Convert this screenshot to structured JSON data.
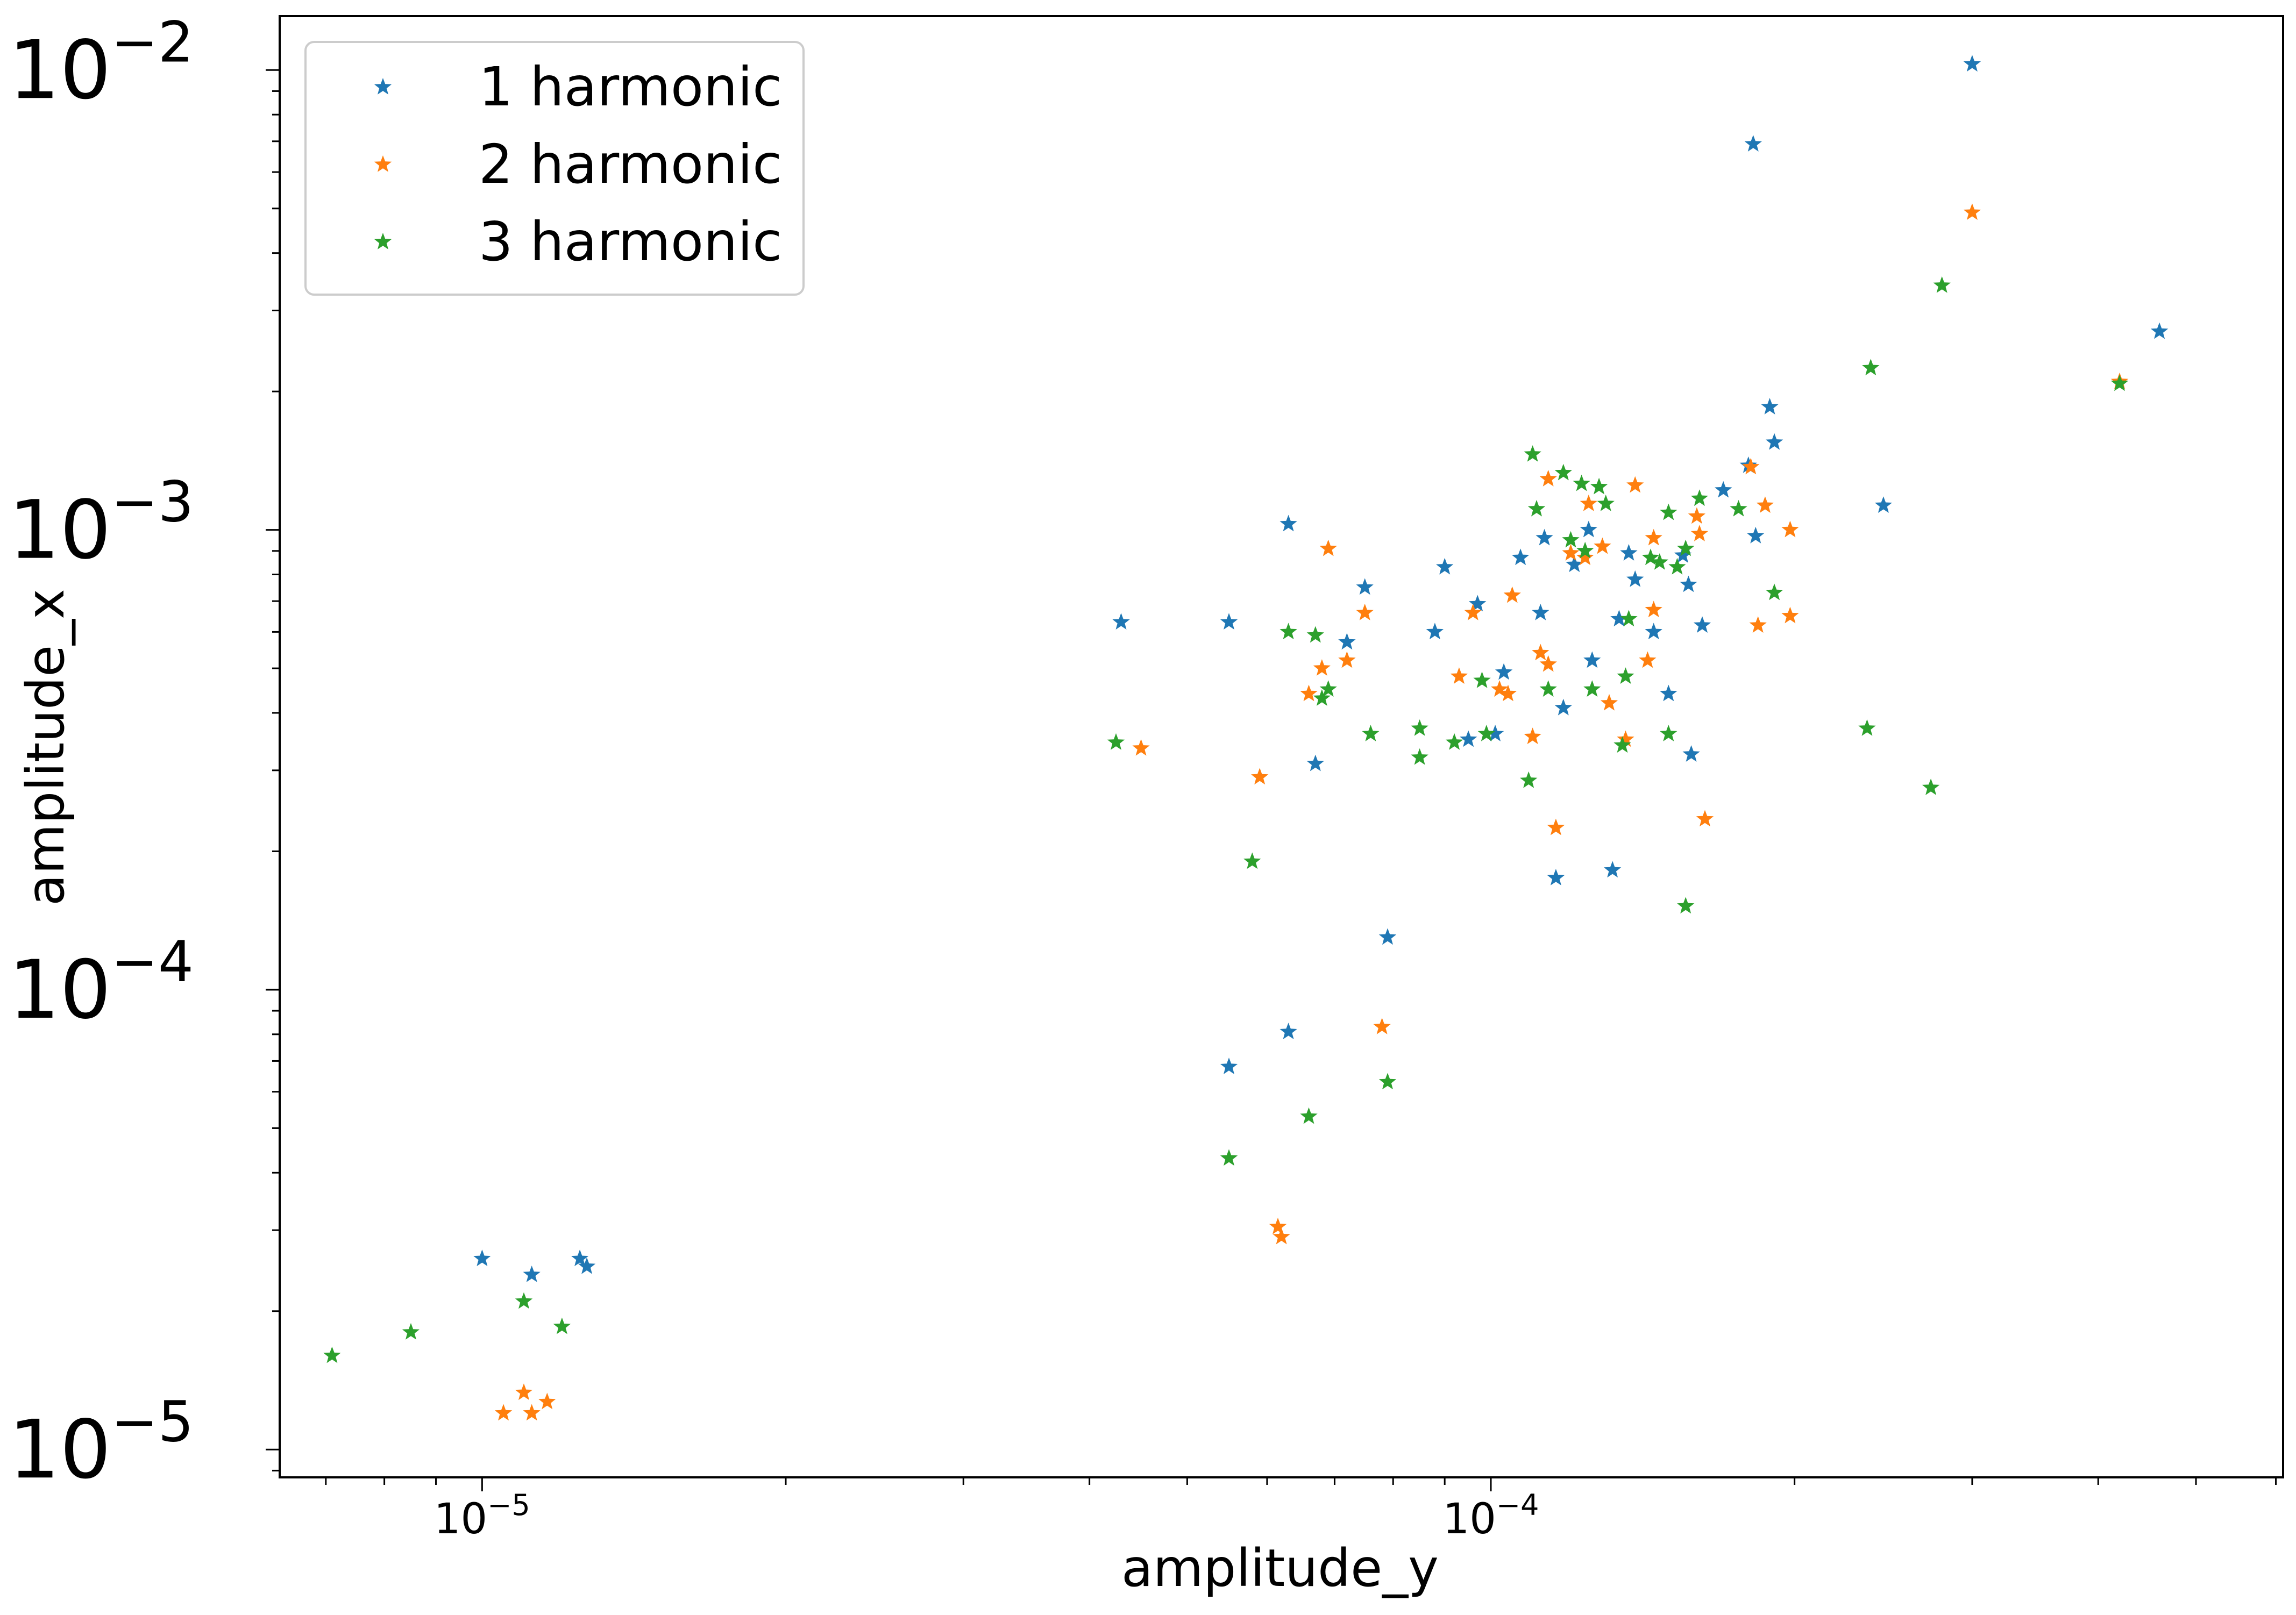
{
  "chart_data": {
    "type": "scatter",
    "xlabel": "amplitude_y",
    "ylabel": "amplitude_x",
    "xscale": "log",
    "yscale": "log",
    "xlim": [
      6.3e-06,
      0.00061
    ],
    "ylim": [
      8.7e-06,
      0.0131
    ],
    "grid": false,
    "legend_position": "top-left",
    "marker": "star",
    "x_ticks": [
      {
        "base": "10",
        "exp": "−5",
        "value": 1e-05
      },
      {
        "base": "10",
        "exp": "−4",
        "value": 0.0001
      }
    ],
    "y_ticks": [
      {
        "base": "10",
        "exp": "−2",
        "value": 0.01
      },
      {
        "base": "10",
        "exp": "−3",
        "value": 0.001
      },
      {
        "base": "10",
        "exp": "−4",
        "value": 0.0001
      },
      {
        "base": "10",
        "exp": "−5",
        "value": 1e-05
      }
    ],
    "series": [
      {
        "name": "1 harmonic",
        "color": "#1f77b4",
        "points": [
          [
            1e-05,
            2.6e-05
          ],
          [
            1.12e-05,
            2.4e-05
          ],
          [
            1.25e-05,
            2.6e-05
          ],
          [
            1.27e-05,
            2.5e-05
          ],
          [
            4.3e-05,
            0.00063
          ],
          [
            5.5e-05,
            0.00063
          ],
          [
            5.5e-05,
            6.8e-05
          ],
          [
            6.3e-05,
            0.00103
          ],
          [
            6.3e-05,
            8.1e-05
          ],
          [
            6.7e-05,
            0.00031
          ],
          [
            7.2e-05,
            0.00057
          ],
          [
            7.5e-05,
            0.00075
          ],
          [
            7.9e-05,
            0.00013
          ],
          [
            8.8e-05,
            0.0006
          ],
          [
            9e-05,
            0.00083
          ],
          [
            9.5e-05,
            0.00035
          ],
          [
            9.7e-05,
            0.00069
          ],
          [
            0.000101,
            0.00036
          ],
          [
            0.000103,
            0.00049
          ],
          [
            0.000107,
            0.00087
          ],
          [
            0.000112,
            0.00066
          ],
          [
            0.000113,
            0.00096
          ],
          [
            0.000116,
            0.000175
          ],
          [
            0.000118,
            0.00041
          ],
          [
            0.000121,
            0.00084
          ],
          [
            0.000125,
            0.001
          ],
          [
            0.000126,
            0.00052
          ],
          [
            0.000132,
            0.000182
          ],
          [
            0.000134,
            0.00064
          ],
          [
            0.000137,
            0.00089
          ],
          [
            0.000139,
            0.00078
          ],
          [
            0.000145,
            0.0006
          ],
          [
            0.00015,
            0.00044
          ],
          [
            0.000155,
            0.00088
          ],
          [
            0.000157,
            0.00076
          ],
          [
            0.000158,
            0.000325
          ],
          [
            0.000162,
            0.00062
          ],
          [
            0.00017,
            0.00122
          ],
          [
            0.00018,
            0.00138
          ],
          [
            0.000182,
            0.0069
          ],
          [
            0.000183,
            0.00097
          ],
          [
            0.000189,
            0.00185
          ],
          [
            0.000191,
            0.00155
          ],
          [
            0.000245,
            0.00113
          ],
          [
            0.0003,
            0.0103
          ],
          [
            0.00046,
            0.0027
          ]
        ]
      },
      {
        "name": "2 harmonic",
        "color": "#ff7f0e",
        "points": [
          [
            1.05e-05,
            1.2e-05
          ],
          [
            1.1e-05,
            1.33e-05
          ],
          [
            1.12e-05,
            1.2e-05
          ],
          [
            1.16e-05,
            1.27e-05
          ],
          [
            4.5e-05,
            0.000335
          ],
          [
            5.9e-05,
            0.00029
          ],
          [
            6.15e-05,
            3.05e-05
          ],
          [
            6.2e-05,
            2.9e-05
          ],
          [
            6.6e-05,
            0.00044
          ],
          [
            6.8e-05,
            0.0005
          ],
          [
            6.9e-05,
            0.00091
          ],
          [
            7.2e-05,
            0.00052
          ],
          [
            7.5e-05,
            0.00066
          ],
          [
            7.8e-05,
            8.3e-05
          ],
          [
            9.3e-05,
            0.00048
          ],
          [
            9.6e-05,
            0.00066
          ],
          [
            0.000102,
            0.00045
          ],
          [
            0.000104,
            0.00044
          ],
          [
            0.000105,
            0.00072
          ],
          [
            0.00011,
            0.000355
          ],
          [
            0.000112,
            0.00054
          ],
          [
            0.000114,
            0.00051
          ],
          [
            0.000114,
            0.00129
          ],
          [
            0.000116,
            0.000225
          ],
          [
            0.00012,
            0.00089
          ],
          [
            0.000124,
            0.00087
          ],
          [
            0.000125,
            0.00114
          ],
          [
            0.000129,
            0.00092
          ],
          [
            0.000131,
            0.00042
          ],
          [
            0.000136,
            0.00035
          ],
          [
            0.000139,
            0.00125
          ],
          [
            0.000143,
            0.00052
          ],
          [
            0.000145,
            0.00067
          ],
          [
            0.000145,
            0.00096
          ],
          [
            0.00016,
            0.00107
          ],
          [
            0.000161,
            0.00098
          ],
          [
            0.000163,
            0.000235
          ],
          [
            0.000181,
            0.00137
          ],
          [
            0.000184,
            0.00062
          ],
          [
            0.000187,
            0.00113
          ],
          [
            0.000198,
            0.00065
          ],
          [
            0.000198,
            0.001
          ],
          [
            0.0003,
            0.0049
          ],
          [
            0.00042,
            0.0021
          ]
        ]
      },
      {
        "name": "3 harmonic",
        "color": "#2ca02c",
        "points": [
          [
            7.1e-06,
            1.6e-05
          ],
          [
            8.5e-06,
            1.8e-05
          ],
          [
            1.1e-05,
            2.1e-05
          ],
          [
            1.2e-05,
            1.85e-05
          ],
          [
            4.25e-05,
            0.000345
          ],
          [
            5.5e-05,
            4.3e-05
          ],
          [
            5.8e-05,
            0.00019
          ],
          [
            6.3e-05,
            0.0006
          ],
          [
            6.6e-05,
            5.3e-05
          ],
          [
            6.7e-05,
            0.00059
          ],
          [
            6.8e-05,
            0.00043
          ],
          [
            6.9e-05,
            0.00045
          ],
          [
            7.6e-05,
            0.00036
          ],
          [
            7.9e-05,
            6.3e-05
          ],
          [
            8.5e-05,
            0.00037
          ],
          [
            8.5e-05,
            0.00032
          ],
          [
            9.2e-05,
            0.000345
          ],
          [
            9.8e-05,
            0.00047
          ],
          [
            9.9e-05,
            0.00036
          ],
          [
            0.000109,
            0.000285
          ],
          [
            0.00011,
            0.00146
          ],
          [
            0.000111,
            0.00111
          ],
          [
            0.000114,
            0.00045
          ],
          [
            0.000118,
            0.00133
          ],
          [
            0.00012,
            0.00095
          ],
          [
            0.000123,
            0.00126
          ],
          [
            0.000124,
            0.0009
          ],
          [
            0.000126,
            0.00045
          ],
          [
            0.000128,
            0.00124
          ],
          [
            0.00013,
            0.00114
          ],
          [
            0.000135,
            0.00034
          ],
          [
            0.000136,
            0.00048
          ],
          [
            0.000137,
            0.00064
          ],
          [
            0.000144,
            0.00087
          ],
          [
            0.000147,
            0.00085
          ],
          [
            0.00015,
            0.00109
          ],
          [
            0.00015,
            0.00036
          ],
          [
            0.000153,
            0.00083
          ],
          [
            0.000156,
            0.00091
          ],
          [
            0.000156,
            0.000152
          ],
          [
            0.000161,
            0.00117
          ],
          [
            0.000176,
            0.00111
          ],
          [
            0.000191,
            0.00073
          ],
          [
            0.000238,
            0.00225
          ],
          [
            0.000236,
            0.00037
          ],
          [
            0.00028,
            0.0034
          ],
          [
            0.000273,
            0.000275
          ],
          [
            0.00042,
            0.00208
          ]
        ]
      }
    ]
  }
}
